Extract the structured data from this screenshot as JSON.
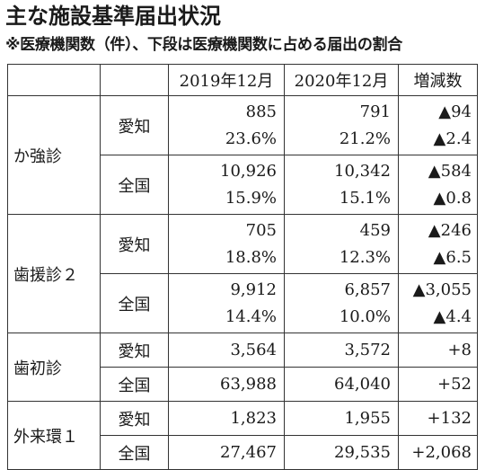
{
  "title": "主な施設基準届出状況",
  "subtitle": "※医療機関数（件）、下段は医療機関数に占める届出の割合",
  "header": {
    "col_2019": "2019年12月",
    "col_2020": "2020年12月",
    "col_diff": "増減数"
  },
  "groups": [
    {
      "category": "か強診",
      "rows": [
        {
          "region": "愛知",
          "y2019": "885",
          "y2019_pct": "23.6%",
          "y2020": "791",
          "y2020_pct": "21.2%",
          "diff": "▲94",
          "diff_pct": "▲2.4"
        },
        {
          "region": "全国",
          "y2019": "10,926",
          "y2019_pct": "15.9%",
          "y2020": "10,342",
          "y2020_pct": "15.1%",
          "diff": "▲584",
          "diff_pct": "▲0.8"
        }
      ]
    },
    {
      "category": "歯援診２",
      "rows": [
        {
          "region": "愛知",
          "y2019": "705",
          "y2019_pct": "18.8%",
          "y2020": "459",
          "y2020_pct": "12.3%",
          "diff": "▲246",
          "diff_pct": "▲6.5"
        },
        {
          "region": "全国",
          "y2019": "9,912",
          "y2019_pct": "14.4%",
          "y2020": "6,857",
          "y2020_pct": "10.0%",
          "diff": "▲3,055",
          "diff_pct": "▲4.4"
        }
      ]
    },
    {
      "category": "歯初診",
      "rows": [
        {
          "region": "愛知",
          "y2019": "3,564",
          "y2020": "3,572",
          "diff": "+8"
        },
        {
          "region": "全国",
          "y2019": "63,988",
          "y2020": "64,040",
          "diff": "+52"
        }
      ]
    },
    {
      "category": "外来環１",
      "rows": [
        {
          "region": "愛知",
          "y2019": "1,823",
          "y2020": "1,955",
          "diff": "+132"
        },
        {
          "region": "全国",
          "y2019": "27,467",
          "y2020": "29,535",
          "diff": "+2,068"
        }
      ]
    }
  ]
}
